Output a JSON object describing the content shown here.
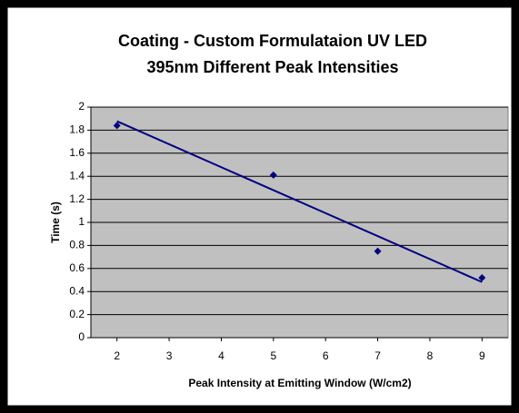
{
  "chart_data": {
    "type": "scatter",
    "title": [
      "Coating - Custom Formulataion UV LED",
      "395nm Different Peak Intensities"
    ],
    "x_label": "Peak Intensity at Emitting Window (W/cm2)",
    "y_label": "Time (s)",
    "series": [
      {
        "x": [
          2,
          5,
          7,
          9
        ],
        "values": [
          1.84,
          1.41,
          0.75,
          0.52
        ],
        "color": "#000080"
      }
    ],
    "trendline": "linear",
    "xlim": [
      1.5,
      9.5
    ],
    "xticks": [
      2,
      3,
      4,
      5,
      6,
      7,
      8,
      9
    ],
    "ylim": [
      0,
      2
    ],
    "yticks": [
      0,
      0.2,
      0.4,
      0.6,
      0.8,
      1,
      1.2,
      1.4,
      1.6,
      1.8,
      2
    ],
    "grid": true,
    "plot_background": "#c0c0c0"
  }
}
